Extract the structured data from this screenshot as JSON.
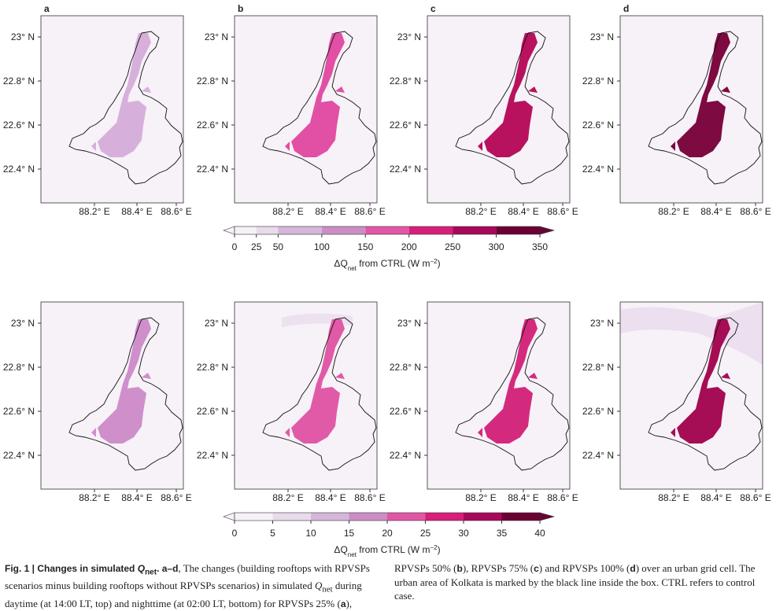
{
  "panel_labels": [
    "a",
    "b",
    "c",
    "d"
  ],
  "lat_ticks": [
    "23° N",
    "22.8° N",
    "22.6° N",
    "22.4° N"
  ],
  "lon_ticks": [
    "88.2° E",
    "88.4° E",
    "88.6° E"
  ],
  "rows": [
    {
      "fills": [
        "#d6b0da",
        "#e150a4",
        "#b8125e",
        "#7d0a40"
      ],
      "background": "#f7f1f8"
    },
    {
      "fills": [
        "#cf8fcb",
        "#e05aa8",
        "#d42a7e",
        "#a50d55"
      ],
      "background": "#f7f1f8"
    }
  ],
  "colorbars": [
    {
      "ticks": [
        0,
        25,
        50,
        100,
        150,
        200,
        250,
        300,
        350
      ],
      "colors": [
        "#f7f1f8",
        "#e8dbec",
        "#d5b7da",
        "#cc8dc7",
        "#e157a6",
        "#d81e79",
        "#a8085a",
        "#6b0033"
      ]
    },
    {
      "ticks": [
        0,
        5,
        10,
        15,
        20,
        25,
        30,
        35,
        40
      ],
      "colors": [
        "#f7f1f8",
        "#e8dbec",
        "#d5b7da",
        "#cc8dc7",
        "#e157a6",
        "#d81e79",
        "#a8085a",
        "#6b0033"
      ]
    }
  ],
  "colorbar_label": [
    "ΔQ",
    "net",
    " from CTRL (W m",
    "−2",
    ")"
  ],
  "caption": [
    "Fig. 1 | Changes in simulated ",
    "Q",
    "net",
    ". a–d",
    ", The changes (building rooftops with RPVSPs scenarios minus building rooftops without RPVSPs scenarios) in simulated ",
    "Q",
    "net",
    " during daytime (at 14:00 LT, top) and nighttime (at 02:00 LT, bottom) for RPVSPs 25% (",
    "a",
    "), RPVSPs 50% (",
    "b",
    "), RPVSPs 75% (",
    "c",
    ") and RPVSPs 100% (",
    "d",
    ") over an urban grid cell. The urban area of Kolkata is marked by the black line inside the box. CTRL refers to control case."
  ]
}
